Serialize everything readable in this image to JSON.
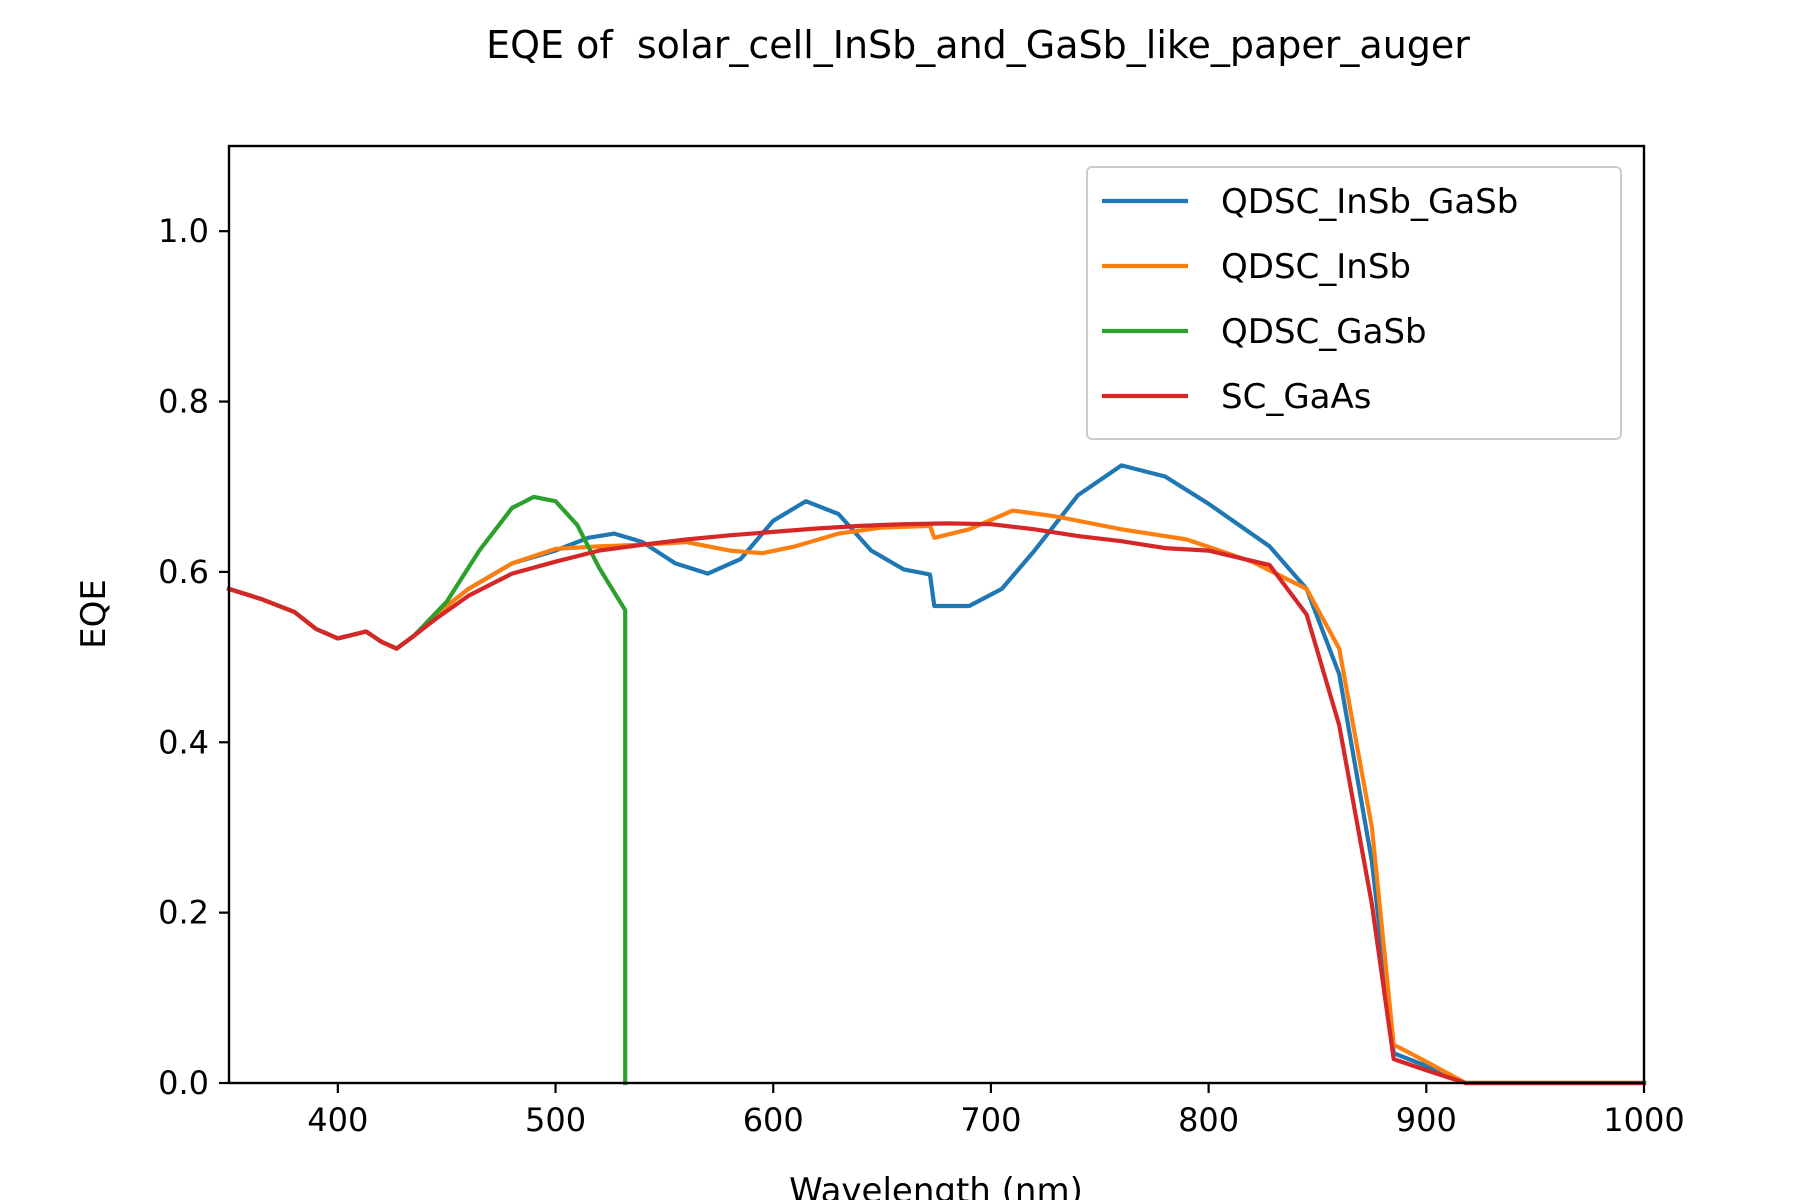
{
  "chart_data": {
    "type": "line",
    "title": "EQE of  solar_cell_InSb_and_GaSb_like_paper_auger",
    "xlabel": "Wavelength (nm)",
    "ylabel": "EQE",
    "xlim": [
      350,
      1000
    ],
    "ylim": [
      0,
      1.1
    ],
    "xticks": [
      400,
      500,
      600,
      700,
      800,
      900,
      1000
    ],
    "yticks": [
      0.0,
      0.2,
      0.4,
      0.6,
      0.8,
      1.0
    ],
    "xtick_labels": [
      "400",
      "500",
      "600",
      "700",
      "800",
      "900",
      "1000"
    ],
    "ytick_labels": [
      "0.0",
      "0.2",
      "0.4",
      "0.6",
      "0.8",
      "1.0"
    ],
    "grid": false,
    "legend_position": "top-right",
    "series": [
      {
        "name": "QDSC_InSb_GaSb",
        "color": "#1f77b4",
        "x": [
          350,
          365,
          380,
          390,
          400,
          413,
          420,
          427,
          435,
          445,
          460,
          480,
          500,
          515,
          527,
          540,
          555,
          570,
          585,
          600,
          615,
          630,
          645,
          660,
          672,
          674,
          690,
          705,
          720,
          740,
          760,
          780,
          800,
          828,
          845,
          860,
          875,
          885,
          900,
          918,
          940,
          1000
        ],
        "y": [
          0.58,
          0.568,
          0.553,
          0.533,
          0.522,
          0.53,
          0.518,
          0.51,
          0.525,
          0.55,
          0.58,
          0.61,
          0.625,
          0.64,
          0.645,
          0.635,
          0.61,
          0.598,
          0.615,
          0.66,
          0.683,
          0.668,
          0.625,
          0.603,
          0.597,
          0.56,
          0.56,
          0.58,
          0.625,
          0.69,
          0.725,
          0.712,
          0.68,
          0.63,
          0.58,
          0.48,
          0.26,
          0.035,
          0.02,
          0.0,
          0.0,
          0.0
        ]
      },
      {
        "name": "QDSC_InSb",
        "color": "#ff7f0e",
        "x": [
          350,
          365,
          380,
          390,
          400,
          413,
          420,
          427,
          435,
          445,
          460,
          480,
          500,
          520,
          540,
          560,
          580,
          595,
          610,
          630,
          650,
          672,
          674,
          690,
          710,
          730,
          760,
          790,
          820,
          845,
          860,
          875,
          885,
          900,
          918,
          940,
          1000
        ],
        "y": [
          0.58,
          0.568,
          0.553,
          0.533,
          0.522,
          0.53,
          0.518,
          0.51,
          0.525,
          0.55,
          0.58,
          0.61,
          0.627,
          0.63,
          0.632,
          0.635,
          0.625,
          0.622,
          0.63,
          0.645,
          0.652,
          0.654,
          0.64,
          0.65,
          0.672,
          0.665,
          0.65,
          0.638,
          0.612,
          0.58,
          0.51,
          0.3,
          0.045,
          0.025,
          0.0,
          0.0,
          0.0
        ]
      },
      {
        "name": "QDSC_GaSb",
        "color": "#2ca02c",
        "x": [
          350,
          365,
          380,
          390,
          400,
          413,
          420,
          427,
          435,
          450,
          465,
          480,
          490,
          500,
          510,
          520,
          532,
          532
        ],
        "y": [
          0.58,
          0.568,
          0.553,
          0.533,
          0.522,
          0.53,
          0.518,
          0.51,
          0.525,
          0.565,
          0.625,
          0.675,
          0.688,
          0.683,
          0.655,
          0.605,
          0.555,
          0.0
        ]
      },
      {
        "name": "SC_GaAs",
        "color": "#d62728",
        "x": [
          350,
          365,
          380,
          390,
          400,
          413,
          420,
          427,
          435,
          445,
          460,
          480,
          500,
          520,
          540,
          560,
          580,
          600,
          620,
          640,
          660,
          680,
          700,
          720,
          740,
          760,
          780,
          800,
          828,
          845,
          860,
          875,
          885,
          900,
          918,
          940,
          1000
        ],
        "y": [
          0.58,
          0.568,
          0.553,
          0.533,
          0.522,
          0.53,
          0.518,
          0.51,
          0.525,
          0.545,
          0.572,
          0.598,
          0.612,
          0.625,
          0.632,
          0.638,
          0.643,
          0.647,
          0.651,
          0.654,
          0.656,
          0.657,
          0.656,
          0.65,
          0.642,
          0.636,
          0.628,
          0.625,
          0.608,
          0.55,
          0.42,
          0.21,
          0.028,
          0.015,
          0.0,
          0.0,
          0.0
        ]
      }
    ]
  }
}
